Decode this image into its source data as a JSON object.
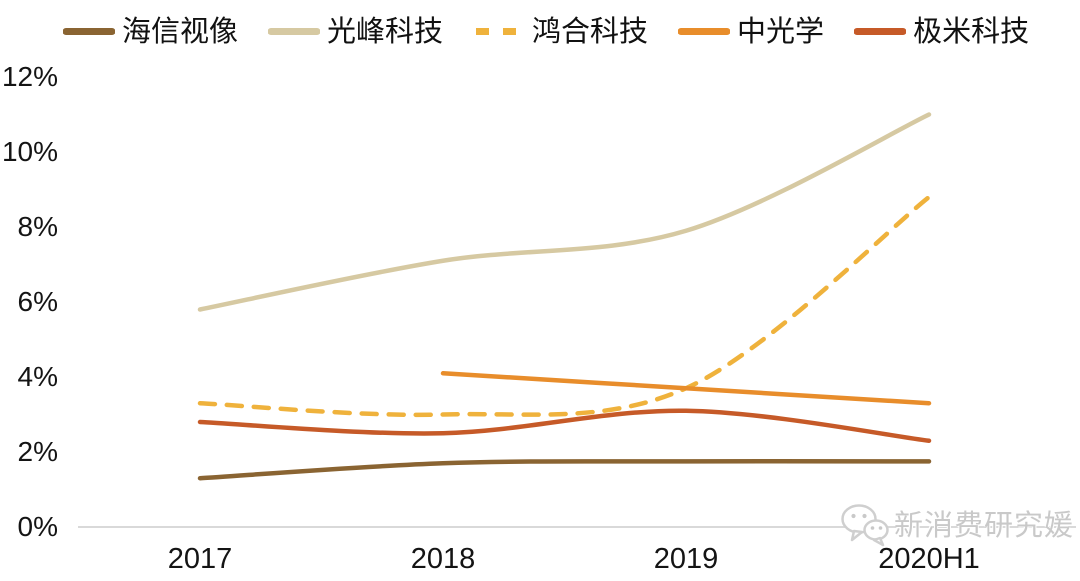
{
  "watermark": {
    "text": "新消费研究媛",
    "icon": "wechat-chat-bubbles"
  },
  "axis": {
    "line_color": "#d9d9d9",
    "label_color": "#141414",
    "y_tick_labels": [
      "12%",
      "10%",
      "8%",
      "6%",
      "4%",
      "2%",
      "0%"
    ]
  },
  "chart_data": {
    "type": "line",
    "title": "",
    "xlabel": "",
    "ylabel": "",
    "categories": [
      "2017",
      "2018",
      "2019",
      "2020H1"
    ],
    "ylim": [
      0,
      12
    ],
    "y_tick_step": 2,
    "y_tick_format": "percent",
    "grid": false,
    "legend_position": "top",
    "series": [
      {
        "name": "海信视像",
        "color": "#8a6432",
        "style": "solid",
        "values": [
          1.3,
          1.7,
          1.75,
          1.75
        ]
      },
      {
        "name": "光峰科技",
        "color": "#d6c9a2",
        "style": "solid",
        "values": [
          5.8,
          7.1,
          7.9,
          11.0
        ]
      },
      {
        "name": "鸿合科技",
        "color": "#efb23c",
        "style": "dashed",
        "values": [
          3.3,
          3.0,
          3.7,
          8.8
        ]
      },
      {
        "name": "中光学",
        "color": "#e88d2b",
        "style": "solid",
        "values": [
          null,
          4.1,
          3.7,
          3.3
        ]
      },
      {
        "name": "极米科技",
        "color": "#c65a28",
        "style": "solid",
        "values": [
          2.8,
          2.5,
          3.1,
          2.3
        ]
      }
    ]
  }
}
